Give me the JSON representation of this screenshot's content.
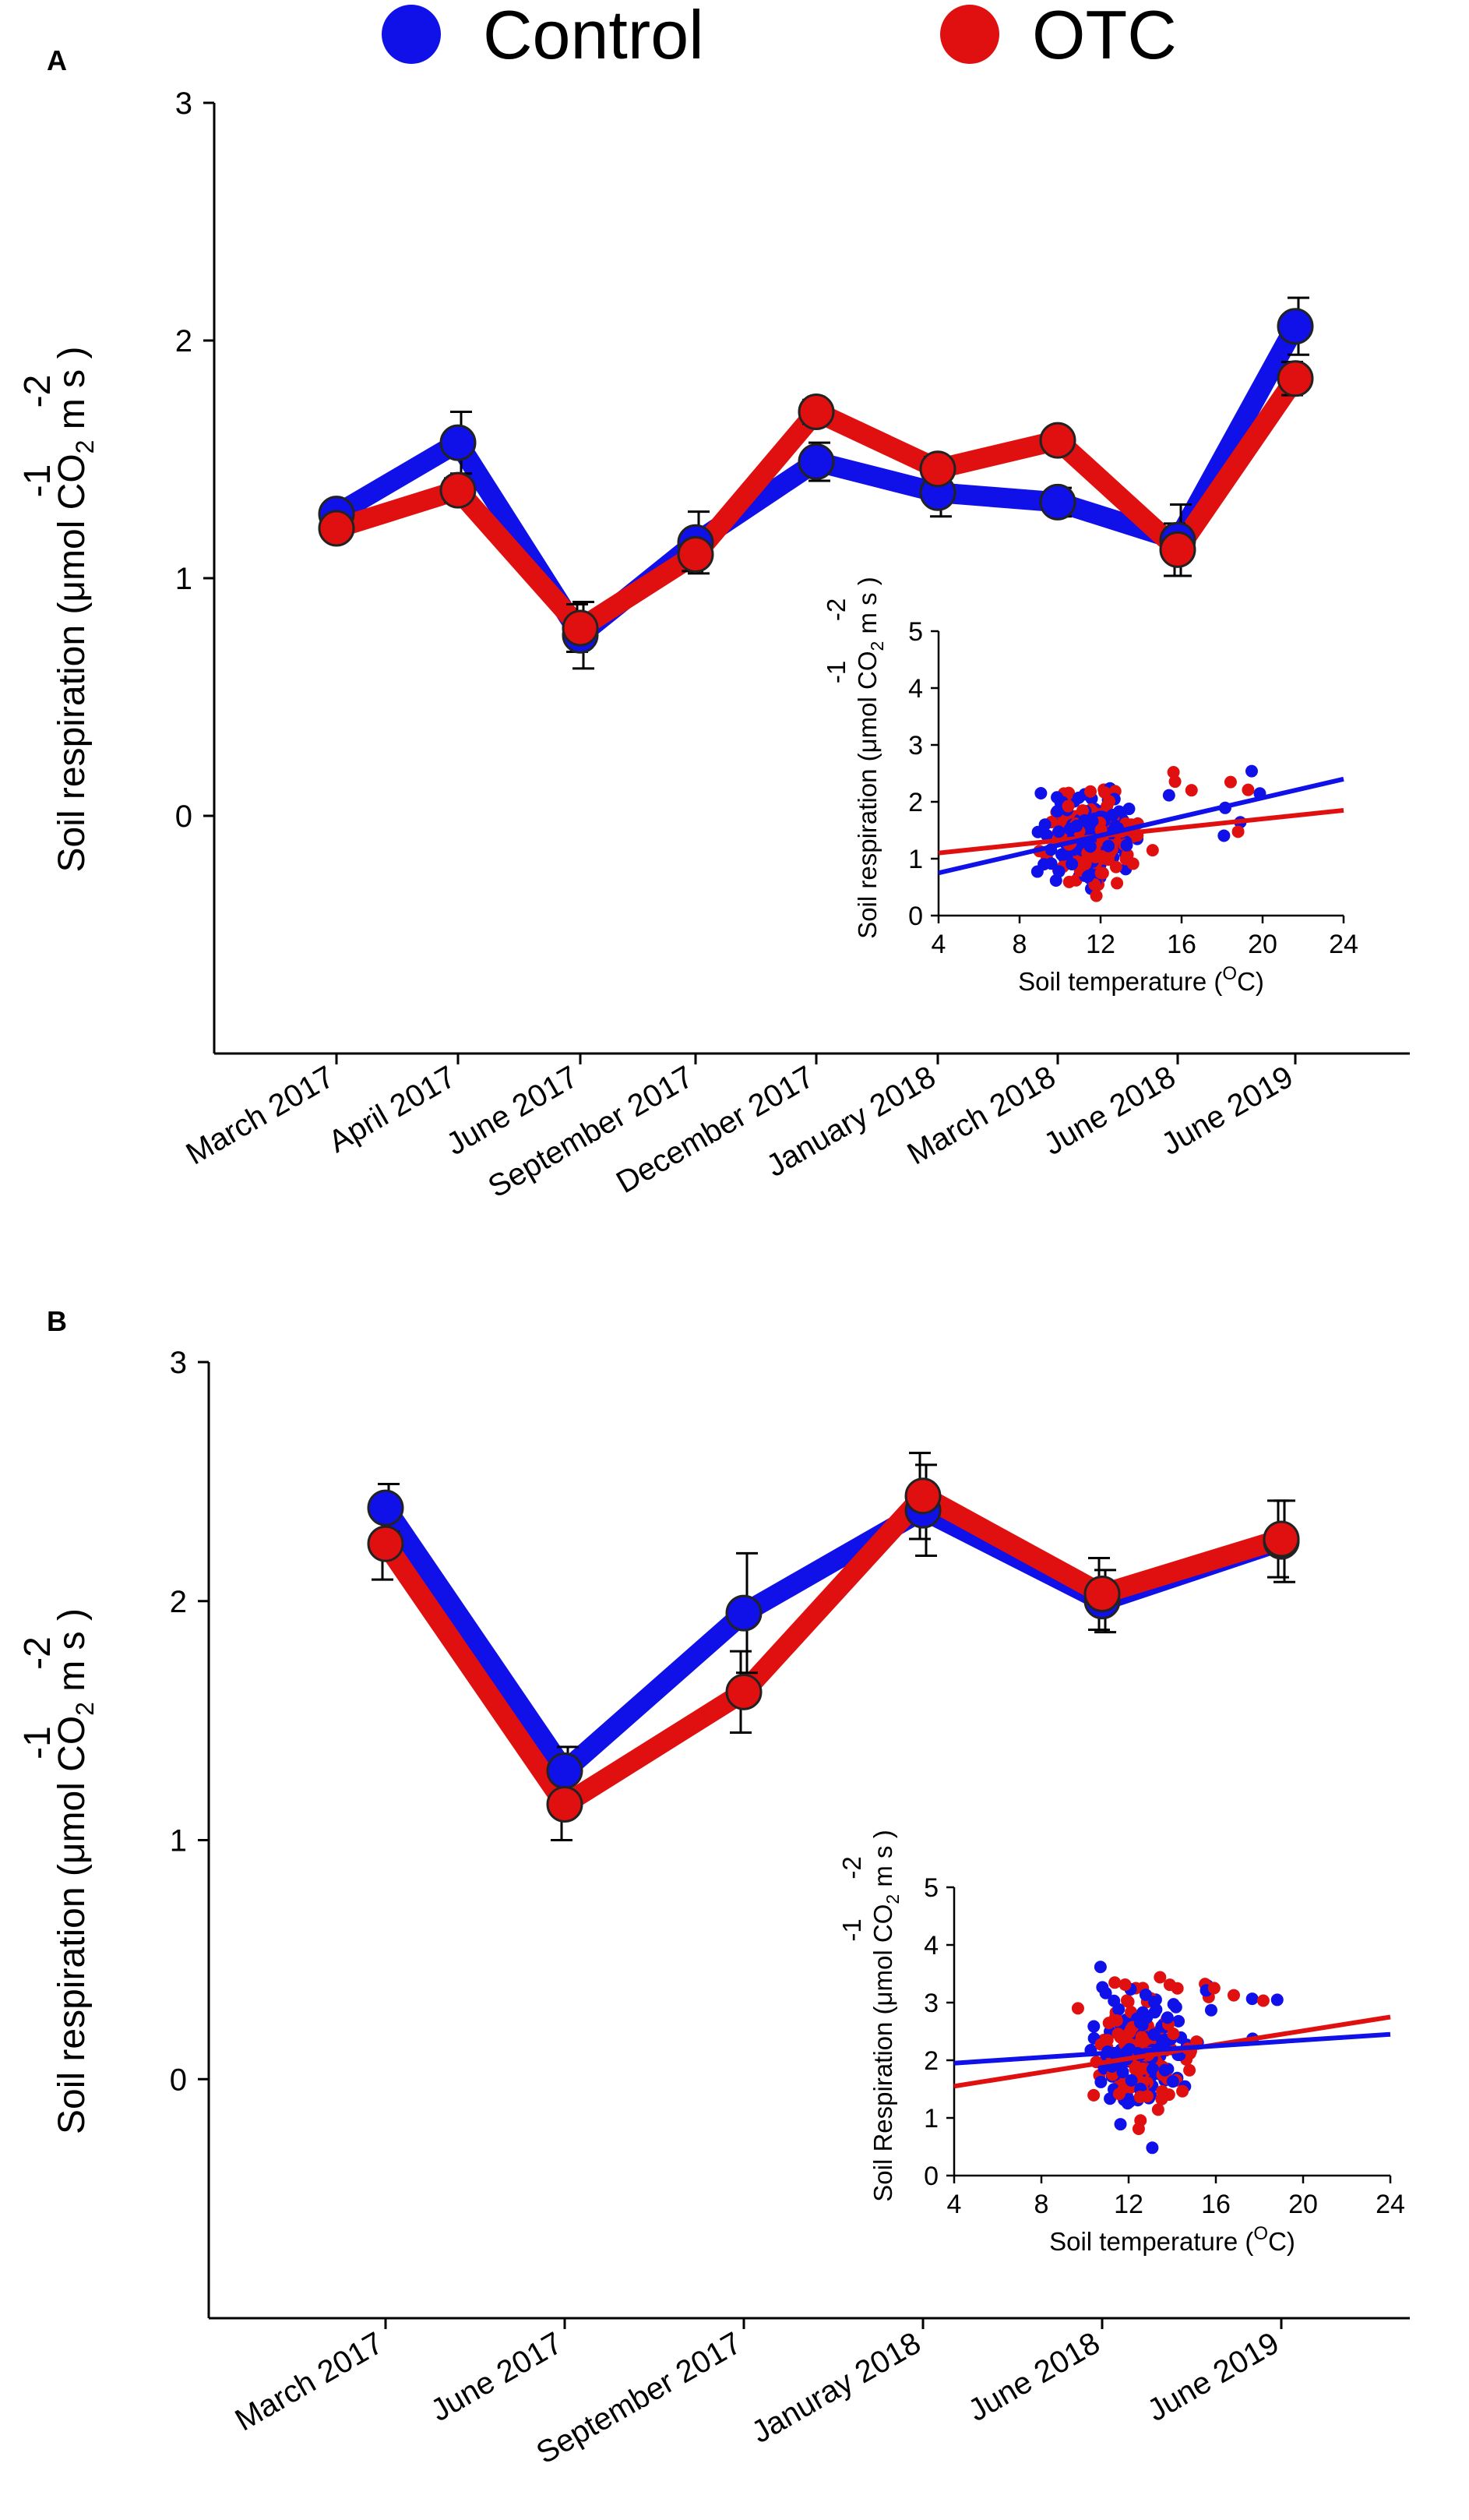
{
  "legend": {
    "control_label": "Control",
    "otc_label": "OTC",
    "control_color": "#1010e8",
    "otc_color": "#e01010"
  },
  "chart_data": [
    {
      "panel": "A",
      "type": "line",
      "categories": [
        "March 2017",
        "April 2017",
        "June 2017",
        "September 2017",
        "December 2017",
        "January 2018",
        "March 2018",
        "June 2018",
        "June 2019"
      ],
      "series": [
        {
          "name": "Control",
          "values": [
            1.27,
            1.57,
            0.76,
            1.15,
            1.49,
            1.36,
            1.32,
            1.16,
            2.06
          ],
          "errors": [
            0.04,
            0.13,
            0.14,
            0.13,
            0.08,
            0.1,
            0.06,
            0.15,
            0.12
          ]
        },
        {
          "name": "OTC",
          "values": [
            1.21,
            1.37,
            0.79,
            1.1,
            1.7,
            1.46,
            1.58,
            1.12,
            1.84
          ],
          "errors": [
            0.03,
            0.05,
            0.1,
            0.07,
            0.05,
            0.05,
            0.04,
            0.11,
            0.07
          ]
        }
      ],
      "ylim": [
        -1,
        3
      ],
      "yticks": [
        "0",
        "1",
        "2",
        "3"
      ],
      "ylabel": {
        "main": "Soil respiration (",
        "mu": "μ",
        "unit": "mol CO",
        "sub": "2",
        "unit2": " m",
        "s": "s",
        "paren": ")",
        "sup1": "-2",
        "sup2": "-1"
      },
      "inset": {
        "xlim": [
          4,
          24
        ],
        "ylim": [
          0,
          5
        ],
        "xticks": [
          "4",
          "8",
          "12",
          "16",
          "20",
          "24"
        ],
        "yticks": [
          "0",
          "1",
          "2",
          "3",
          "4",
          "5"
        ],
        "xlabel": {
          "main": "Soil temperature (",
          "sup": "O",
          "end": "C)"
        },
        "ylabel": {
          "main": "Soil respiration (",
          "mu": "μ",
          "unit": "mol CO",
          "sub": "2",
          "unit2": " m",
          "s": "s",
          "paren": ")",
          "sup1": "-2",
          "sup2": "-1"
        },
        "fit_control": [
          [
            4,
            0.75
          ],
          [
            24,
            2.4
          ]
        ],
        "fit_otc": [
          [
            4,
            1.1
          ],
          [
            24,
            1.85
          ]
        ]
      }
    },
    {
      "panel": "B",
      "type": "line",
      "categories": [
        "March 2017",
        "June 2017",
        "September 2017",
        "Januray 2018",
        "June 2018",
        "June 2019"
      ],
      "series": [
        {
          "name": "Control",
          "values": [
            2.39,
            1.29,
            1.95,
            2.38,
            2.0,
            2.25
          ],
          "errors": [
            0.1,
            0.1,
            0.25,
            0.19,
            0.13,
            0.17
          ]
        },
        {
          "name": "OTC",
          "values": [
            2.24,
            1.15,
            1.62,
            2.44,
            2.03,
            2.26
          ],
          "errors": [
            0.15,
            0.15,
            0.17,
            0.18,
            0.15,
            0.16
          ]
        }
      ],
      "ylim": [
        -1,
        3
      ],
      "yticks": [
        "0",
        "1",
        "2",
        "3"
      ],
      "ylabel": {
        "main": "Soil respiration (",
        "mu": "μ",
        "unit": "mol CO",
        "sub": "2",
        "unit2": " m",
        "s": "s",
        "paren": ")",
        "sup1": "-2",
        "sup2": "-1"
      },
      "inset": {
        "xlim": [
          4,
          24
        ],
        "ylim": [
          0,
          5
        ],
        "xticks": [
          "4",
          "8",
          "12",
          "16",
          "20",
          "24"
        ],
        "yticks": [
          "0",
          "1",
          "2",
          "3",
          "4",
          "5"
        ],
        "xlabel": {
          "main": "Soil temperature (",
          "sup": "O",
          "end": "C)"
        },
        "ylabel": {
          "main": "Soil Respiration (",
          "mu": "μ",
          "unit": "mol CO",
          "sub": "2",
          "unit2": " m",
          "s": "s",
          "paren": ")",
          "sup1": "-2",
          "sup2": "-1"
        },
        "fit_control": [
          [
            4,
            1.95
          ],
          [
            24,
            2.45
          ]
        ],
        "fit_otc": [
          [
            4,
            1.55
          ],
          [
            24,
            2.75
          ]
        ]
      }
    }
  ]
}
